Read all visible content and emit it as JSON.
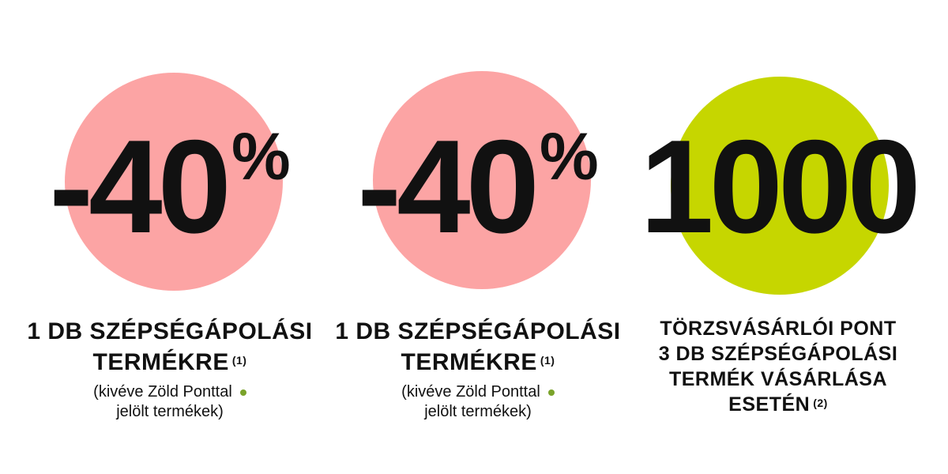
{
  "offers": [
    {
      "big": "-40",
      "unit": "%",
      "lines": [
        "1 DB SZÉPSÉGÁPOLÁSI",
        "TERMÉKRE"
      ],
      "footnote": "(1)",
      "note": [
        "(kivéve Zöld Ponttal",
        "jelölt termékek)"
      ]
    },
    {
      "big": "-40",
      "unit": "%",
      "lines": [
        "1 DB SZÉPSÉGÁPOLÁSI",
        "TERMÉKRE"
      ],
      "footnote": "(1)",
      "note": [
        "(kivéve Zöld Ponttal",
        "jelölt termékek)"
      ]
    },
    {
      "big": "1000",
      "lines": [
        "TÖRZSVÁSÁRLÓI PONT",
        "3 DB SZÉPSÉGÁPOLÁSI",
        "TERMÉK VÁSÁRLÁSA",
        "ESETÉN"
      ],
      "footnote": "(2)"
    }
  ]
}
